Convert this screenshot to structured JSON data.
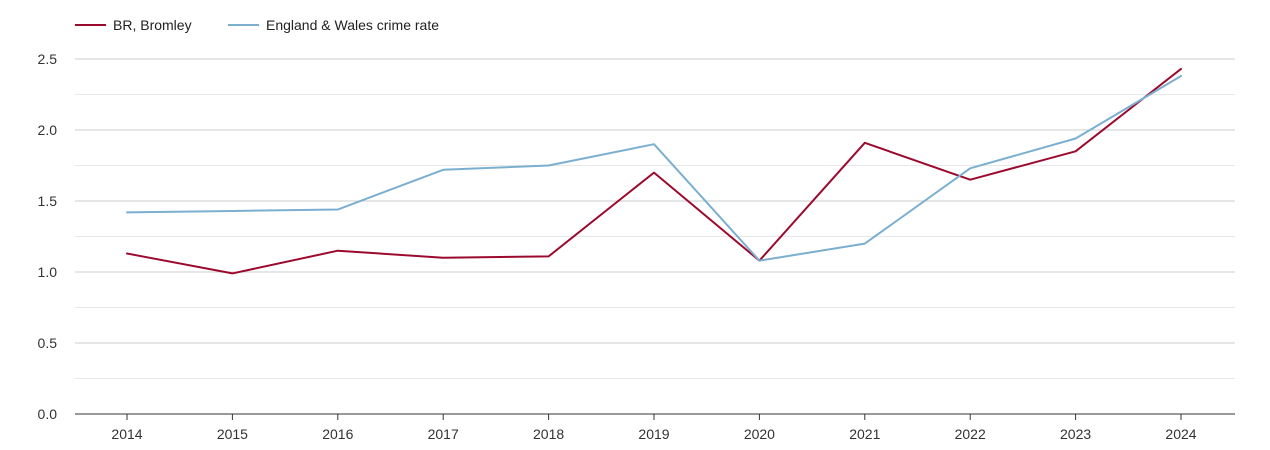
{
  "chart_data": {
    "type": "line",
    "title": "",
    "xlabel": "",
    "ylabel": "",
    "x": [
      "2014",
      "2015",
      "2016",
      "2017",
      "2018",
      "2019",
      "2020",
      "2021",
      "2022",
      "2023",
      "2024"
    ],
    "ylim": [
      0,
      2.5
    ],
    "y_ticks": [
      "0.0",
      "0.5",
      "1.0",
      "1.5",
      "2.0",
      "2.5"
    ],
    "grid": true,
    "legend_position": "top-left",
    "series": [
      {
        "name": "BR, Bromley",
        "color": "#9b0a2e",
        "values": [
          1.13,
          0.99,
          1.15,
          1.1,
          1.11,
          1.7,
          1.08,
          1.91,
          1.65,
          1.85,
          2.43
        ]
      },
      {
        "name": "England & Wales crime rate",
        "color": "#7bafd0",
        "values": [
          1.42,
          1.43,
          1.44,
          1.72,
          1.75,
          1.9,
          1.08,
          1.2,
          1.73,
          1.94,
          2.38
        ]
      }
    ]
  }
}
